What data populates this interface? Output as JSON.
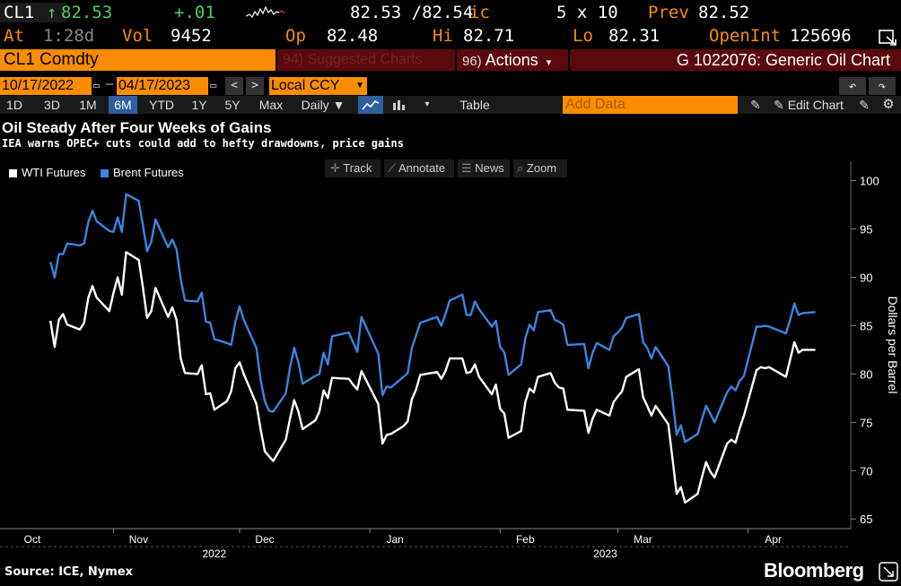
{
  "quote": {
    "ticker": "CL1",
    "arrow": "↑",
    "last": "82.53",
    "change": "+.01",
    "bid_ask": "82.53 /82.54",
    "bid_ask_suffix": "ic",
    "size": "5 x 10",
    "prev_label": "Prev",
    "prev_value": "82.52",
    "at_label": "At",
    "at_value": "1:28d",
    "vol_label": "Vol",
    "vol_value": "9452",
    "op_label": "Op",
    "op_value": "82.48",
    "hi_label": "Hi",
    "hi_value": "82.71",
    "lo_label": "Lo",
    "lo_value": "82.31",
    "oi_label": "OpenInt",
    "oi_value": "125696"
  },
  "command": {
    "security": "CL1 Comdty",
    "suggested": "94) Suggested Charts",
    "actions_num": "96)",
    "actions": "Actions",
    "chart_title": "G 1022076: Generic Oil Chart"
  },
  "dates": {
    "start": "10/17/2022",
    "end": "04/17/2023",
    "currency": "Local CCY"
  },
  "periods": [
    "1D",
    "3D",
    "1M",
    "6M",
    "YTD",
    "1Y",
    "5Y",
    "Max"
  ],
  "active_period": "6M",
  "toolbar": {
    "frequency": "Daily ▼",
    "table": "Table",
    "add_data": "Add Data",
    "edit_chart": "Edit Chart"
  },
  "headline": "Oil Steady After Four Weeks of Gains",
  "subheadline": "IEA warns OPEC+ cuts could add to hefty drawdowns, price gains",
  "chart_tools": [
    "Track",
    "Annotate",
    "News",
    "Zoom"
  ],
  "footer": {
    "source": "Source: ICE, Nymex",
    "brand": "Bloomberg"
  },
  "colors": {
    "wti": "#ffffff",
    "brent": "#3a85e0",
    "amber": "#fa8c00",
    "green": "#4bd25a",
    "panel_red": "#5a0a0a"
  },
  "chart_data": {
    "type": "line",
    "ylabel": "Dollars per Barrel",
    "ylim": [
      64,
      102
    ],
    "yticks": [
      65,
      70,
      75,
      80,
      85,
      90,
      95,
      100
    ],
    "xlim": [
      "2022-10-17",
      "2023-04-17"
    ],
    "x_month_labels": [
      {
        "date": "2022-10-01",
        "label": "Oct"
      },
      {
        "date": "2022-11-01",
        "label": "Nov"
      },
      {
        "date": "2022-12-01",
        "label": "Dec"
      },
      {
        "date": "2023-01-01",
        "label": "Jan"
      },
      {
        "date": "2023-02-01",
        "label": "Feb"
      },
      {
        "date": "2023-03-01",
        "label": "Mar"
      },
      {
        "date": "2023-04-01",
        "label": "Apr"
      }
    ],
    "x_year_labels": [
      {
        "date": "2022-11-25",
        "label": "2022"
      },
      {
        "date": "2023-02-26",
        "label": "2023"
      }
    ],
    "legend": "top-left",
    "series": [
      {
        "name": "WTI Futures",
        "color": "#ffffff",
        "points": [
          [
            "2022-10-17",
            85.5
          ],
          [
            "2022-10-18",
            82.8
          ],
          [
            "2022-10-19",
            85.6
          ],
          [
            "2022-10-20",
            86.2
          ],
          [
            "2022-10-21",
            85.1
          ],
          [
            "2022-10-24",
            84.6
          ],
          [
            "2022-10-25",
            85.3
          ],
          [
            "2022-10-26",
            87.9
          ],
          [
            "2022-10-27",
            89.1
          ],
          [
            "2022-10-28",
            87.9
          ],
          [
            "2022-10-31",
            86.5
          ],
          [
            "2022-11-01",
            88.4
          ],
          [
            "2022-11-02",
            90.0
          ],
          [
            "2022-11-03",
            88.2
          ],
          [
            "2022-11-04",
            92.6
          ],
          [
            "2022-11-07",
            91.8
          ],
          [
            "2022-11-08",
            89.0
          ],
          [
            "2022-11-09",
            85.8
          ],
          [
            "2022-11-10",
            86.5
          ],
          [
            "2022-11-11",
            88.9
          ],
          [
            "2022-11-14",
            85.9
          ],
          [
            "2022-11-15",
            86.9
          ],
          [
            "2022-11-16",
            85.6
          ],
          [
            "2022-11-17",
            81.6
          ],
          [
            "2022-11-18",
            80.1
          ],
          [
            "2022-11-21",
            80.0
          ],
          [
            "2022-11-22",
            80.9
          ],
          [
            "2022-11-23",
            77.9
          ],
          [
            "2022-11-24",
            78.0
          ],
          [
            "2022-11-25",
            76.3
          ],
          [
            "2022-11-28",
            77.2
          ],
          [
            "2022-11-29",
            78.2
          ],
          [
            "2022-11-30",
            80.6
          ],
          [
            "2022-12-01",
            81.2
          ],
          [
            "2022-12-02",
            80.0
          ],
          [
            "2022-12-05",
            76.9
          ],
          [
            "2022-12-06",
            74.3
          ],
          [
            "2022-12-07",
            72.0
          ],
          [
            "2022-12-08",
            71.5
          ],
          [
            "2022-12-09",
            71.0
          ],
          [
            "2022-12-12",
            73.2
          ],
          [
            "2022-12-13",
            75.4
          ],
          [
            "2022-12-14",
            77.3
          ],
          [
            "2022-12-15",
            76.1
          ],
          [
            "2022-12-16",
            74.3
          ],
          [
            "2022-12-19",
            75.2
          ],
          [
            "2022-12-20",
            76.1
          ],
          [
            "2022-12-21",
            78.3
          ],
          [
            "2022-12-22",
            77.5
          ],
          [
            "2022-12-23",
            79.6
          ],
          [
            "2022-12-27",
            79.5
          ],
          [
            "2022-12-28",
            78.9
          ],
          [
            "2022-12-29",
            78.4
          ],
          [
            "2022-12-30",
            80.3
          ],
          [
            "2023-01-03",
            76.9
          ],
          [
            "2023-01-04",
            72.8
          ],
          [
            "2023-01-05",
            73.7
          ],
          [
            "2023-01-06",
            73.8
          ],
          [
            "2023-01-09",
            74.6
          ],
          [
            "2023-01-10",
            75.1
          ],
          [
            "2023-01-11",
            77.4
          ],
          [
            "2023-01-12",
            78.4
          ],
          [
            "2023-01-13",
            79.9
          ],
          [
            "2023-01-17",
            80.2
          ],
          [
            "2023-01-18",
            79.5
          ],
          [
            "2023-01-19",
            80.3
          ],
          [
            "2023-01-20",
            81.6
          ],
          [
            "2023-01-23",
            81.6
          ],
          [
            "2023-01-24",
            80.1
          ],
          [
            "2023-01-25",
            80.2
          ],
          [
            "2023-01-26",
            81.0
          ],
          [
            "2023-01-27",
            79.7
          ],
          [
            "2023-01-30",
            77.9
          ],
          [
            "2023-01-31",
            78.9
          ],
          [
            "2023-02-01",
            76.4
          ],
          [
            "2023-02-02",
            75.9
          ],
          [
            "2023-02-03",
            73.4
          ],
          [
            "2023-02-06",
            74.1
          ],
          [
            "2023-02-07",
            77.1
          ],
          [
            "2023-02-08",
            78.5
          ],
          [
            "2023-02-09",
            78.1
          ],
          [
            "2023-02-10",
            79.7
          ],
          [
            "2023-02-13",
            80.1
          ],
          [
            "2023-02-14",
            79.1
          ],
          [
            "2023-02-15",
            78.6
          ],
          [
            "2023-02-16",
            78.5
          ],
          [
            "2023-02-17",
            76.3
          ],
          [
            "2023-02-21",
            76.2
          ],
          [
            "2023-02-22",
            73.9
          ],
          [
            "2023-02-23",
            75.4
          ],
          [
            "2023-02-24",
            76.3
          ],
          [
            "2023-02-27",
            75.7
          ],
          [
            "2023-02-28",
            77.1
          ],
          [
            "2023-03-01",
            77.7
          ],
          [
            "2023-03-02",
            78.2
          ],
          [
            "2023-03-03",
            79.7
          ],
          [
            "2023-03-06",
            80.5
          ],
          [
            "2023-03-07",
            77.6
          ],
          [
            "2023-03-08",
            76.7
          ],
          [
            "2023-03-09",
            75.7
          ],
          [
            "2023-03-10",
            76.7
          ],
          [
            "2023-03-13",
            74.8
          ],
          [
            "2023-03-14",
            71.3
          ],
          [
            "2023-03-15",
            67.6
          ],
          [
            "2023-03-16",
            68.3
          ],
          [
            "2023-03-17",
            66.7
          ],
          [
            "2023-03-20",
            67.6
          ],
          [
            "2023-03-21",
            69.3
          ],
          [
            "2023-03-22",
            70.9
          ],
          [
            "2023-03-23",
            69.9
          ],
          [
            "2023-03-24",
            69.3
          ],
          [
            "2023-03-27",
            72.8
          ],
          [
            "2023-03-28",
            73.2
          ],
          [
            "2023-03-29",
            72.9
          ],
          [
            "2023-03-30",
            74.4
          ],
          [
            "2023-03-31",
            75.7
          ],
          [
            "2023-04-03",
            80.4
          ],
          [
            "2023-04-04",
            80.7
          ],
          [
            "2023-04-05",
            80.6
          ],
          [
            "2023-04-06",
            80.7
          ],
          [
            "2023-04-10",
            79.7
          ],
          [
            "2023-04-11",
            81.5
          ],
          [
            "2023-04-12",
            83.3
          ],
          [
            "2023-04-13",
            82.2
          ],
          [
            "2023-04-14",
            82.5
          ],
          [
            "2023-04-17",
            82.5
          ]
        ]
      },
      {
        "name": "Brent Futures",
        "color": "#3a85e0",
        "points": [
          [
            "2022-10-17",
            91.6
          ],
          [
            "2022-10-18",
            90.0
          ],
          [
            "2022-10-19",
            92.4
          ],
          [
            "2022-10-20",
            92.4
          ],
          [
            "2022-10-21",
            93.5
          ],
          [
            "2022-10-24",
            93.3
          ],
          [
            "2022-10-25",
            93.5
          ],
          [
            "2022-10-26",
            95.7
          ],
          [
            "2022-10-27",
            96.9
          ],
          [
            "2022-10-28",
            95.8
          ],
          [
            "2022-10-31",
            94.8
          ],
          [
            "2022-11-01",
            94.7
          ],
          [
            "2022-11-02",
            96.2
          ],
          [
            "2022-11-03",
            94.7
          ],
          [
            "2022-11-04",
            98.6
          ],
          [
            "2022-11-07",
            97.9
          ],
          [
            "2022-11-08",
            95.4
          ],
          [
            "2022-11-09",
            92.7
          ],
          [
            "2022-11-10",
            93.7
          ],
          [
            "2022-11-11",
            95.99
          ],
          [
            "2022-11-14",
            93.1
          ],
          [
            "2022-11-15",
            93.9
          ],
          [
            "2022-11-16",
            92.9
          ],
          [
            "2022-11-17",
            89.8
          ],
          [
            "2022-11-18",
            87.6
          ],
          [
            "2022-11-21",
            87.5
          ],
          [
            "2022-11-22",
            88.4
          ],
          [
            "2022-11-23",
            85.4
          ],
          [
            "2022-11-24",
            85.3
          ],
          [
            "2022-11-25",
            83.6
          ],
          [
            "2022-11-28",
            83.2
          ],
          [
            "2022-11-29",
            83.0
          ],
          [
            "2022-11-30",
            85.4
          ],
          [
            "2022-12-01",
            87.0
          ],
          [
            "2022-12-02",
            85.6
          ],
          [
            "2022-12-05",
            82.7
          ],
          [
            "2022-12-06",
            79.4
          ],
          [
            "2022-12-07",
            77.2
          ],
          [
            "2022-12-08",
            76.2
          ],
          [
            "2022-12-09",
            76.1
          ],
          [
            "2022-12-12",
            77.99
          ],
          [
            "2022-12-13",
            80.7
          ],
          [
            "2022-12-14",
            82.7
          ],
          [
            "2022-12-15",
            81.2
          ],
          [
            "2022-12-16",
            79.0
          ],
          [
            "2022-12-19",
            79.8
          ],
          [
            "2022-12-20",
            79.99
          ],
          [
            "2022-12-21",
            82.2
          ],
          [
            "2022-12-22",
            80.98
          ],
          [
            "2022-12-23",
            83.9
          ],
          [
            "2022-12-27",
            84.3
          ],
          [
            "2022-12-28",
            83.3
          ],
          [
            "2022-12-29",
            82.3
          ],
          [
            "2022-12-30",
            85.9
          ],
          [
            "2023-01-03",
            82.1
          ],
          [
            "2023-01-04",
            77.8
          ],
          [
            "2023-01-05",
            78.7
          ],
          [
            "2023-01-06",
            78.6
          ],
          [
            "2023-01-09",
            79.7
          ],
          [
            "2023-01-10",
            80.1
          ],
          [
            "2023-01-11",
            82.7
          ],
          [
            "2023-01-12",
            84.0
          ],
          [
            "2023-01-13",
            85.3
          ],
          [
            "2023-01-17",
            85.9
          ],
          [
            "2023-01-18",
            84.98
          ],
          [
            "2023-01-19",
            86.2
          ],
          [
            "2023-01-20",
            87.6
          ],
          [
            "2023-01-23",
            88.2
          ],
          [
            "2023-01-24",
            86.1
          ],
          [
            "2023-01-25",
            86.1
          ],
          [
            "2023-01-26",
            87.5
          ],
          [
            "2023-01-27",
            86.7
          ],
          [
            "2023-01-30",
            84.9
          ],
          [
            "2023-01-31",
            85.5
          ],
          [
            "2023-02-01",
            82.8
          ],
          [
            "2023-02-02",
            82.2
          ],
          [
            "2023-02-03",
            79.9
          ],
          [
            "2023-02-06",
            80.99
          ],
          [
            "2023-02-07",
            83.7
          ],
          [
            "2023-02-08",
            85.1
          ],
          [
            "2023-02-09",
            84.5
          ],
          [
            "2023-02-10",
            86.4
          ],
          [
            "2023-02-13",
            86.6
          ],
          [
            "2023-02-14",
            85.6
          ],
          [
            "2023-02-15",
            85.4
          ],
          [
            "2023-02-16",
            85.1
          ],
          [
            "2023-02-17",
            83.0
          ],
          [
            "2023-02-21",
            83.1
          ],
          [
            "2023-02-22",
            80.6
          ],
          [
            "2023-02-23",
            82.2
          ],
          [
            "2023-02-24",
            83.2
          ],
          [
            "2023-02-27",
            82.5
          ],
          [
            "2023-02-28",
            83.9
          ],
          [
            "2023-03-01",
            84.3
          ],
          [
            "2023-03-02",
            84.8
          ],
          [
            "2023-03-03",
            85.8
          ],
          [
            "2023-03-06",
            86.2
          ],
          [
            "2023-03-07",
            83.3
          ],
          [
            "2023-03-08",
            82.7
          ],
          [
            "2023-03-09",
            81.6
          ],
          [
            "2023-03-10",
            82.8
          ],
          [
            "2023-03-13",
            80.8
          ],
          [
            "2023-03-14",
            77.5
          ],
          [
            "2023-03-15",
            73.7
          ],
          [
            "2023-03-16",
            74.7
          ],
          [
            "2023-03-17",
            72.97
          ],
          [
            "2023-03-20",
            73.8
          ],
          [
            "2023-03-21",
            75.3
          ],
          [
            "2023-03-22",
            76.7
          ],
          [
            "2023-03-23",
            75.9
          ],
          [
            "2023-03-24",
            74.99
          ],
          [
            "2023-03-27",
            78.1
          ],
          [
            "2023-03-28",
            78.7
          ],
          [
            "2023-03-29",
            78.3
          ],
          [
            "2023-03-30",
            79.3
          ],
          [
            "2023-03-31",
            79.8
          ],
          [
            "2023-04-03",
            84.9
          ],
          [
            "2023-04-04",
            84.9
          ],
          [
            "2023-04-05",
            84.99
          ],
          [
            "2023-04-06",
            84.9
          ],
          [
            "2023-04-10",
            84.2
          ],
          [
            "2023-04-11",
            85.6
          ],
          [
            "2023-04-12",
            87.3
          ],
          [
            "2023-04-13",
            86.1
          ],
          [
            "2023-04-14",
            86.3
          ],
          [
            "2023-04-17",
            86.4
          ]
        ]
      }
    ]
  }
}
